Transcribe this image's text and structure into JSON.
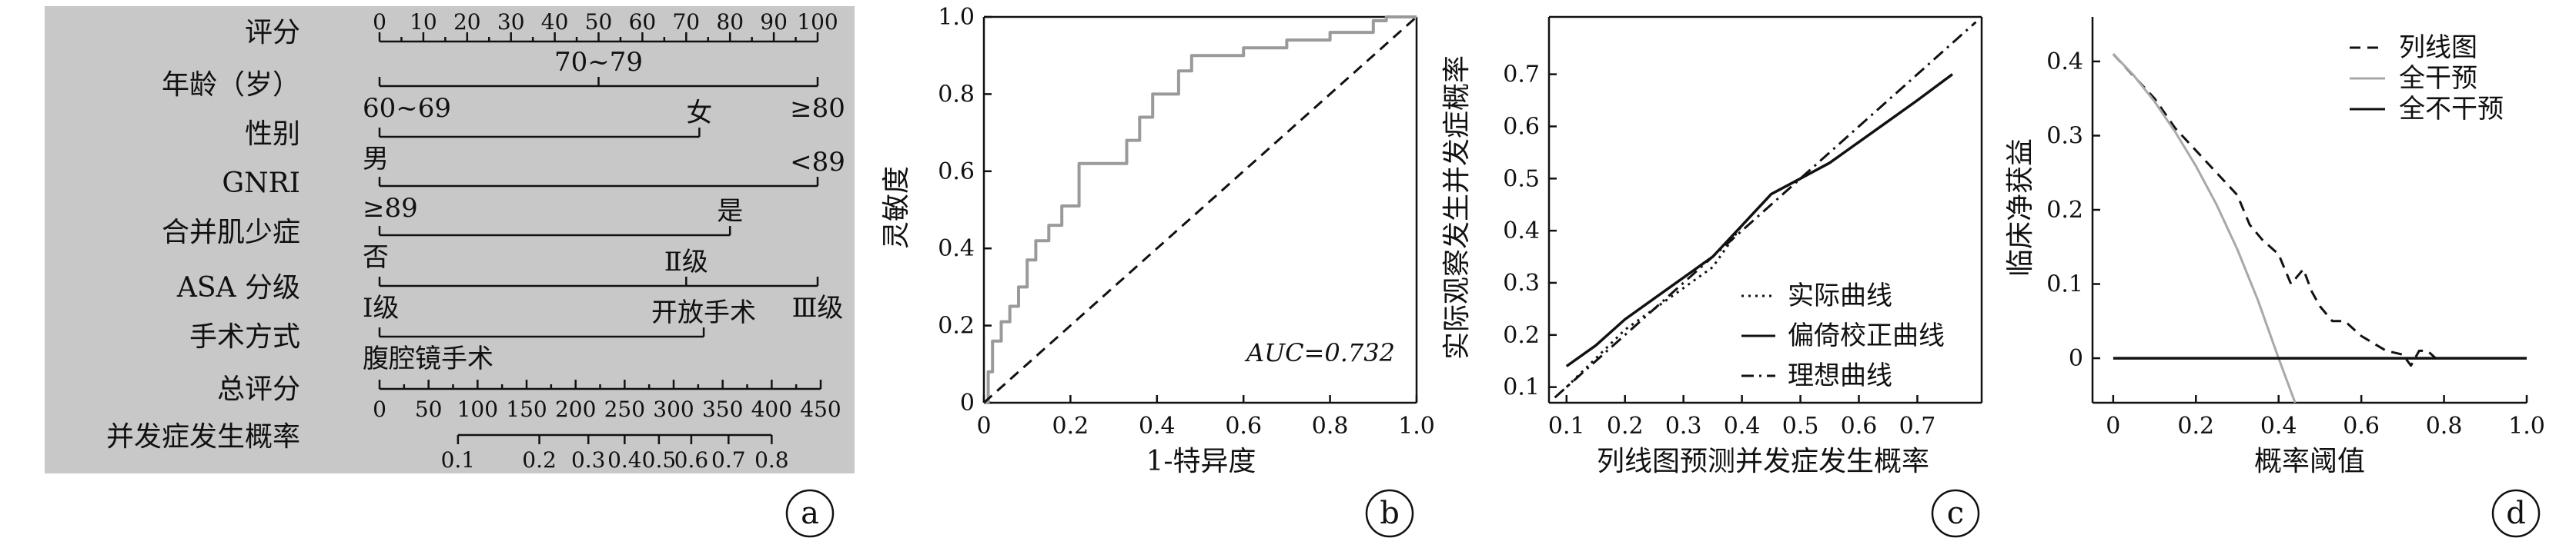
{
  "panel_labels": [
    "a",
    "b",
    "c",
    "d"
  ],
  "colors": {
    "nomogram_bg": "#c8c8c8",
    "line": "#111111",
    "roc_curve": "#9a9a9a",
    "treat_all": "#a8a8a8"
  },
  "nomogram": {
    "rows": [
      {
        "label": "评分",
        "ticks": [
          0,
          10,
          20,
          30,
          40,
          50,
          60,
          70,
          80,
          90,
          100
        ],
        "range": [
          0,
          100
        ]
      },
      {
        "label": "年龄（岁）",
        "points": [
          {
            "text": "60~69",
            "score": 0
          },
          {
            "text": "70~79",
            "score": 50
          },
          {
            "text": "≥80",
            "score": 100
          }
        ]
      },
      {
        "label": "性别",
        "points": [
          {
            "text": "男",
            "score": 0
          },
          {
            "text": "女",
            "score": 73
          }
        ]
      },
      {
        "label": "GNRI",
        "points": [
          {
            "text": "≥89",
            "score": 0
          },
          {
            "text": "<89",
            "score": 100
          }
        ]
      },
      {
        "label": "合并肌少症",
        "points": [
          {
            "text": "否",
            "score": 0
          },
          {
            "text": "是",
            "score": 80
          }
        ]
      },
      {
        "label": "ASA 分级",
        "points": [
          {
            "text": "Ⅰ级",
            "score": 0
          },
          {
            "text": "Ⅱ级",
            "score": 70
          },
          {
            "text": "Ⅲ级",
            "score": 100
          }
        ]
      },
      {
        "label": "手术方式",
        "points": [
          {
            "text": "腹腔镜手术",
            "score": 0
          },
          {
            "text": "开放手术",
            "score": 74
          }
        ]
      },
      {
        "label": "总评分",
        "ticks": [
          0,
          50,
          100,
          150,
          200,
          250,
          300,
          350,
          400,
          450
        ],
        "range": [
          0,
          450
        ]
      },
      {
        "label": "并发症发生概率",
        "ticks": [
          {
            "text": "0.1",
            "total": 80
          },
          {
            "text": "0.2",
            "total": 163
          },
          {
            "text": "0.3",
            "total": 213
          },
          {
            "text": "0.4",
            "total": 250
          },
          {
            "text": "0.5",
            "total": 285
          },
          {
            "text": "0.6",
            "total": 318
          },
          {
            "text": "0.7",
            "total": 356
          },
          {
            "text": "0.8",
            "total": 400
          }
        ]
      }
    ]
  },
  "chart_data": [
    {
      "type": "line",
      "panel": "b",
      "xlabel": "1-特异度",
      "ylabel": "灵敏度",
      "xlim": [
        0,
        1
      ],
      "ylim": [
        0,
        1
      ],
      "xticks": [
        "0",
        "0.2",
        "0.4",
        "0.6",
        "0.8",
        "1.0"
      ],
      "yticks": [
        "0",
        "0.2",
        "0.4",
        "0.6",
        "0.8",
        "1.0"
      ],
      "annotation": "AUC=0.732",
      "series": [
        {
          "style": "solid-gray",
          "x": [
            0,
            0.01,
            0.01,
            0.02,
            0.02,
            0.04,
            0.04,
            0.06,
            0.06,
            0.08,
            0.08,
            0.1,
            0.1,
            0.12,
            0.12,
            0.15,
            0.15,
            0.18,
            0.18,
            0.22,
            0.22,
            0.33,
            0.33,
            0.36,
            0.36,
            0.39,
            0.39,
            0.45,
            0.45,
            0.48,
            0.48,
            0.6,
            0.6,
            0.7,
            0.7,
            0.8,
            0.8,
            0.9,
            0.9,
            0.93,
            0.93,
            1.0
          ],
          "y": [
            0,
            0,
            0.08,
            0.08,
            0.16,
            0.16,
            0.21,
            0.21,
            0.25,
            0.25,
            0.3,
            0.3,
            0.37,
            0.37,
            0.42,
            0.42,
            0.46,
            0.46,
            0.51,
            0.51,
            0.62,
            0.62,
            0.68,
            0.68,
            0.74,
            0.74,
            0.8,
            0.8,
            0.86,
            0.86,
            0.9,
            0.9,
            0.92,
            0.92,
            0.94,
            0.94,
            0.96,
            0.96,
            0.99,
            0.99,
            1.0,
            1.0
          ]
        },
        {
          "style": "dashed",
          "x": [
            0,
            1
          ],
          "y": [
            0,
            1
          ]
        }
      ]
    },
    {
      "type": "line",
      "panel": "c",
      "xlabel": "列线图预测并发症发生概率",
      "ylabel": "实际观察发生并发症概率",
      "xlim": [
        0.07,
        0.81
      ],
      "ylim": [
        0.07,
        0.81
      ],
      "xticks": [
        "0.1",
        "0.2",
        "0.3",
        "0.4",
        "0.5",
        "0.6",
        "0.7"
      ],
      "yticks": [
        "0.1",
        "0.2",
        "0.3",
        "0.4",
        "0.5",
        "0.6",
        "0.7"
      ],
      "legend": "right",
      "series": [
        {
          "name": "实际曲线",
          "style": "dotted",
          "x": [
            0.1,
            0.2,
            0.3,
            0.35,
            0.4,
            0.45,
            0.5,
            0.55,
            0.6,
            0.65,
            0.7,
            0.76
          ],
          "y": [
            0.1,
            0.21,
            0.29,
            0.33,
            0.41,
            0.47,
            0.5,
            0.53,
            0.57,
            0.61,
            0.65,
            0.7
          ]
        },
        {
          "name": "偏倚校正曲线",
          "style": "solid",
          "x": [
            0.1,
            0.15,
            0.2,
            0.25,
            0.3,
            0.35,
            0.4,
            0.45,
            0.5,
            0.55,
            0.6,
            0.65,
            0.7,
            0.76
          ],
          "y": [
            0.14,
            0.18,
            0.23,
            0.27,
            0.31,
            0.35,
            0.41,
            0.47,
            0.5,
            0.53,
            0.57,
            0.61,
            0.65,
            0.7
          ]
        },
        {
          "name": "理想曲线",
          "style": "dashdot",
          "x": [
            0.08,
            0.8
          ],
          "y": [
            0.08,
            0.8
          ]
        }
      ]
    },
    {
      "type": "line",
      "panel": "d",
      "xlabel": "概率阈值",
      "ylabel": "临床净获益",
      "xlim": [
        -0.05,
        1.0
      ],
      "ylim": [
        -0.06,
        0.46
      ],
      "xticks": [
        "0",
        "0.2",
        "0.4",
        "0.6",
        "0.8",
        "1.0"
      ],
      "yticks": [
        "0",
        "0.1",
        "0.2",
        "0.3",
        "0.4"
      ],
      "legend": "top-right",
      "series": [
        {
          "name": "列线图",
          "style": "dashed",
          "x": [
            0,
            0.05,
            0.1,
            0.15,
            0.2,
            0.25,
            0.3,
            0.33,
            0.36,
            0.4,
            0.43,
            0.46,
            0.48,
            0.5,
            0.53,
            0.56,
            0.6,
            0.63,
            0.66,
            0.7,
            0.72,
            0.74,
            0.76,
            0.78,
            0.8
          ],
          "y": [
            0.41,
            0.38,
            0.35,
            0.31,
            0.28,
            0.25,
            0.22,
            0.18,
            0.16,
            0.14,
            0.1,
            0.12,
            0.09,
            0.07,
            0.05,
            0.05,
            0.03,
            0.02,
            0.01,
            0.005,
            -0.01,
            0.01,
            0.01,
            0.0,
            0.0
          ]
        },
        {
          "name": "全干预",
          "style": "gray",
          "x": [
            0,
            0.05,
            0.1,
            0.15,
            0.2,
            0.25,
            0.3,
            0.35,
            0.4,
            0.44
          ],
          "y": [
            0.41,
            0.381,
            0.346,
            0.305,
            0.259,
            0.207,
            0.147,
            0.078,
            0.0,
            -0.06
          ]
        },
        {
          "name": "全不干预",
          "style": "solid",
          "x": [
            0,
            1.0
          ],
          "y": [
            0,
            0
          ]
        }
      ]
    }
  ]
}
